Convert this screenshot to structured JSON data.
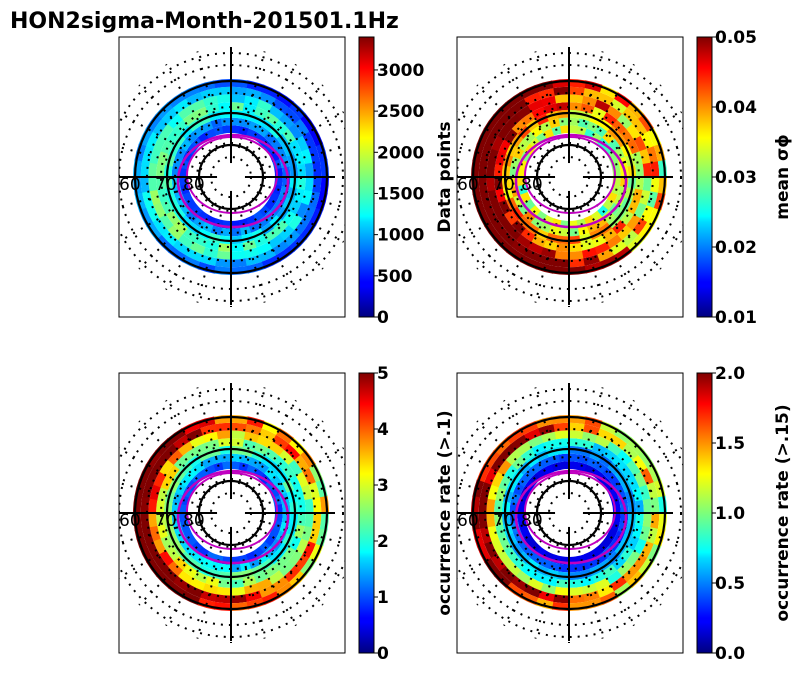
{
  "chart_data": {
    "title": "HON2sigma-Month-201501.1Hz",
    "panels": [
      {
        "type": "polar-heatmap",
        "name": "data-points",
        "colorbar_label": "Data points",
        "colorbar_ticks": [
          "0",
          "500",
          "1000",
          "1500",
          "2000",
          "2500",
          "3000"
        ],
        "clim": [
          0,
          3400
        ],
        "lat_labels": [
          "60",
          "70",
          "80"
        ],
        "ring_values": [
          600,
          900,
          1250,
          1500,
          1350,
          950,
          700
        ]
      },
      {
        "type": "polar-heatmap",
        "name": "mean-sigma-phi",
        "colorbar_label": "mean σϕ",
        "colorbar_ticks": [
          "0.01",
          "0.02",
          "0.03",
          "0.04",
          "0.05"
        ],
        "clim": [
          0.01,
          0.05
        ],
        "lat_labels": [
          "60",
          "70",
          "80"
        ],
        "ring_values": [
          0.031,
          0.034,
          0.037,
          0.041,
          0.045,
          0.048,
          0.05
        ]
      },
      {
        "type": "polar-heatmap",
        "name": "occurrence-rate-01",
        "colorbar_label": "occurrence rate (>.1)",
        "colorbar_ticks": [
          "0",
          "1",
          "2",
          "3",
          "4",
          "5"
        ],
        "clim": [
          0,
          5
        ],
        "lat_labels": [
          "60",
          "70",
          "80"
        ],
        "ring_values": [
          1.0,
          1.6,
          2.2,
          2.6,
          3.3,
          4.6,
          4.2
        ]
      },
      {
        "type": "polar-heatmap",
        "name": "occurrence-rate-015",
        "colorbar_label": "occurrence rate (>.15)",
        "colorbar_ticks": [
          "0.0",
          "0.5",
          "1.0",
          "1.5",
          "2.0"
        ],
        "clim": [
          0,
          2
        ],
        "lat_labels": [
          "60",
          "70",
          "80"
        ],
        "ring_values": [
          0.2,
          0.4,
          0.6,
          0.8,
          1.1,
          1.7,
          1.5
        ]
      }
    ]
  }
}
